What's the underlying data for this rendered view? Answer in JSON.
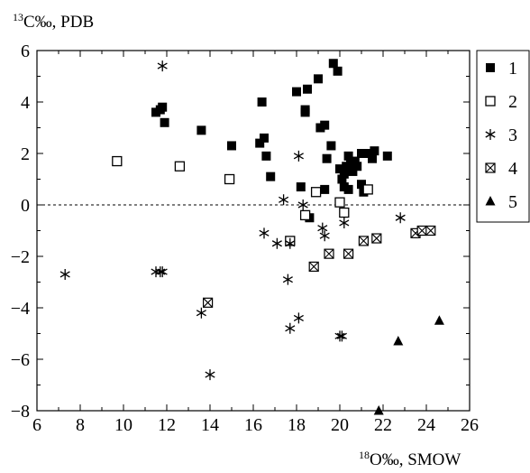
{
  "chart_data": {
    "type": "scatter",
    "title": "",
    "ylabel": {
      "sup": "13",
      "text": "C‰, PDB"
    },
    "xlabel": {
      "sup": "18",
      "text": "O‰, SMOW"
    },
    "xlim": [
      6,
      26
    ],
    "ylim": [
      -8,
      6
    ],
    "xticks": [
      "6",
      "8",
      "10",
      "12",
      "14",
      "16",
      "18",
      "20",
      "22",
      "24",
      "26"
    ],
    "yticks": [
      "−8",
      "−6",
      "−4",
      "−2",
      "0",
      "2",
      "4",
      "6"
    ],
    "reference_line": {
      "y": 0,
      "style": "dashed"
    },
    "legend_position": "top-right-outside",
    "series": [
      {
        "name": "1",
        "marker": "filled-square",
        "points": [
          [
            11.5,
            3.6
          ],
          [
            11.7,
            3.7
          ],
          [
            11.8,
            3.8
          ],
          [
            11.9,
            3.2
          ],
          [
            13.6,
            2.9
          ],
          [
            15.0,
            2.3
          ],
          [
            16.3,
            2.4
          ],
          [
            16.4,
            4.0
          ],
          [
            16.5,
            2.6
          ],
          [
            16.6,
            1.9
          ],
          [
            16.8,
            1.1
          ],
          [
            18.0,
            4.4
          ],
          [
            18.4,
            3.6
          ],
          [
            18.4,
            3.7
          ],
          [
            18.5,
            4.5
          ],
          [
            19.0,
            4.9
          ],
          [
            19.1,
            3.0
          ],
          [
            19.3,
            3.1
          ],
          [
            19.6,
            2.3
          ],
          [
            19.7,
            5.5
          ],
          [
            19.9,
            5.2
          ],
          [
            19.4,
            1.8
          ],
          [
            20.0,
            1.4
          ],
          [
            20.1,
            1.0
          ],
          [
            20.2,
            1.2
          ],
          [
            20.3,
            1.5
          ],
          [
            20.4,
            1.9
          ],
          [
            20.5,
            1.6
          ],
          [
            20.6,
            1.3
          ],
          [
            20.7,
            1.7
          ],
          [
            20.8,
            1.5
          ],
          [
            21.0,
            2.0
          ],
          [
            21.2,
            2.0
          ],
          [
            21.5,
            1.8
          ],
          [
            21.6,
            2.1
          ],
          [
            22.2,
            1.9
          ],
          [
            20.2,
            0.7
          ],
          [
            20.4,
            0.6
          ],
          [
            21.0,
            0.8
          ],
          [
            21.1,
            0.5
          ],
          [
            19.3,
            0.6
          ],
          [
            18.2,
            0.7
          ],
          [
            18.6,
            -0.5
          ]
        ]
      },
      {
        "name": "2",
        "marker": "open-square",
        "points": [
          [
            9.7,
            1.7
          ],
          [
            12.6,
            1.5
          ],
          [
            14.9,
            1.0
          ],
          [
            18.9,
            0.5
          ],
          [
            20.0,
            0.1
          ],
          [
            20.2,
            -0.3
          ],
          [
            21.3,
            0.6
          ],
          [
            18.4,
            -0.4
          ],
          [
            17.7,
            -1.4
          ]
        ]
      },
      {
        "name": "3",
        "marker": "star",
        "points": [
          [
            11.8,
            5.4
          ],
          [
            7.3,
            -2.7
          ],
          [
            11.5,
            -2.6
          ],
          [
            11.7,
            -2.6
          ],
          [
            11.8,
            -2.6
          ],
          [
            13.6,
            -4.2
          ],
          [
            14.0,
            -6.6
          ],
          [
            16.5,
            -1.1
          ],
          [
            17.1,
            -1.5
          ],
          [
            17.7,
            -1.5
          ],
          [
            17.4,
            0.2
          ],
          [
            17.6,
            -2.9
          ],
          [
            17.7,
            -4.8
          ],
          [
            18.1,
            -4.4
          ],
          [
            18.1,
            1.9
          ],
          [
            18.3,
            0.0
          ],
          [
            19.2,
            -0.9
          ],
          [
            19.3,
            -1.2
          ],
          [
            20.0,
            -5.1
          ],
          [
            20.1,
            -5.1
          ],
          [
            20.2,
            -0.7
          ],
          [
            22.8,
            -0.5
          ]
        ]
      },
      {
        "name": "4",
        "marker": "crossed-square",
        "points": [
          [
            13.9,
            -3.8
          ],
          [
            18.8,
            -2.4
          ],
          [
            19.5,
            -1.9
          ],
          [
            20.4,
            -1.9
          ],
          [
            21.1,
            -1.4
          ],
          [
            21.7,
            -1.3
          ],
          [
            23.5,
            -1.1
          ],
          [
            23.8,
            -1.0
          ],
          [
            24.2,
            -1.0
          ]
        ]
      },
      {
        "name": "5",
        "marker": "filled-triangle",
        "points": [
          [
            21.8,
            -8.0
          ],
          [
            22.7,
            -5.3
          ],
          [
            24.6,
            -4.5
          ]
        ]
      }
    ]
  }
}
